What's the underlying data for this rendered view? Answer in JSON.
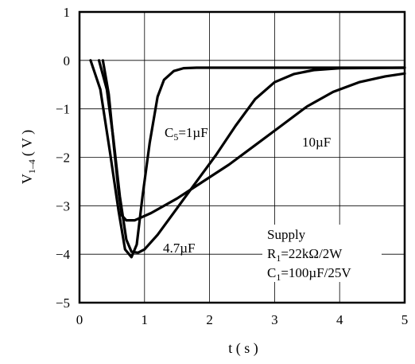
{
  "chart_data": {
    "type": "line",
    "xlabel": "t ( s )",
    "ylabel": {
      "main": "V",
      "sub": "1–4",
      "unit": "( V )"
    },
    "xlim": [
      0,
      5
    ],
    "ylim": [
      -5,
      1
    ],
    "x_ticks": [
      "0",
      "1",
      "2",
      "3",
      "4",
      "5"
    ],
    "y_ticks": [
      "1",
      "0",
      "−1",
      "−2",
      "−3",
      "−4",
      "−5"
    ],
    "grid": true,
    "series": [
      {
        "label": {
          "main": "C",
          "sub": "5",
          "rest": "=1µF"
        },
        "points": [
          [
            0.17,
            0
          ],
          [
            0.32,
            -0.6
          ],
          [
            0.47,
            -1.9
          ],
          [
            0.6,
            -3.1
          ],
          [
            0.7,
            -3.9
          ],
          [
            0.8,
            -4.06
          ],
          [
            0.88,
            -3.8
          ],
          [
            0.97,
            -2.8
          ],
          [
            1.08,
            -1.7
          ],
          [
            1.2,
            -0.75
          ],
          [
            1.3,
            -0.4
          ],
          [
            1.45,
            -0.22
          ],
          [
            1.6,
            -0.16
          ],
          [
            1.8,
            -0.15
          ],
          [
            5,
            -0.15
          ]
        ]
      },
      {
        "label": {
          "main": "4.7µF"
        },
        "points": [
          [
            0.3,
            0
          ],
          [
            0.42,
            -0.6
          ],
          [
            0.52,
            -1.6
          ],
          [
            0.62,
            -2.8
          ],
          [
            0.72,
            -3.7
          ],
          [
            0.8,
            -3.95
          ],
          [
            0.9,
            -3.97
          ],
          [
            1.0,
            -3.9
          ],
          [
            1.2,
            -3.6
          ],
          [
            1.5,
            -3.05
          ],
          [
            1.8,
            -2.5
          ],
          [
            2.1,
            -1.95
          ],
          [
            2.4,
            -1.35
          ],
          [
            2.7,
            -0.8
          ],
          [
            3.0,
            -0.45
          ],
          [
            3.3,
            -0.28
          ],
          [
            3.6,
            -0.2
          ],
          [
            4.0,
            -0.16
          ],
          [
            5,
            -0.15
          ]
        ]
      },
      {
        "label": {
          "main": "10µF"
        },
        "points": [
          [
            0.36,
            0
          ],
          [
            0.45,
            -0.7
          ],
          [
            0.53,
            -1.8
          ],
          [
            0.6,
            -2.7
          ],
          [
            0.65,
            -3.2
          ],
          [
            0.72,
            -3.3
          ],
          [
            0.85,
            -3.3
          ],
          [
            1.1,
            -3.15
          ],
          [
            1.5,
            -2.85
          ],
          [
            1.9,
            -2.5
          ],
          [
            2.3,
            -2.15
          ],
          [
            2.7,
            -1.75
          ],
          [
            3.1,
            -1.35
          ],
          [
            3.5,
            -0.95
          ],
          [
            3.9,
            -0.65
          ],
          [
            4.3,
            -0.45
          ],
          [
            4.7,
            -0.33
          ],
          [
            5,
            -0.27
          ]
        ]
      }
    ],
    "annotation_lines": [
      "Supply",
      "R1=22kΩ/2W",
      "C1=100µF/25V"
    ],
    "annotation": {
      "line1": "Supply",
      "line2": {
        "main": "R",
        "sub": "1",
        "rest": "=22kΩ/2W"
      },
      "line3": {
        "main": "C",
        "sub": "1",
        "rest": "=100µF/25V"
      }
    }
  }
}
